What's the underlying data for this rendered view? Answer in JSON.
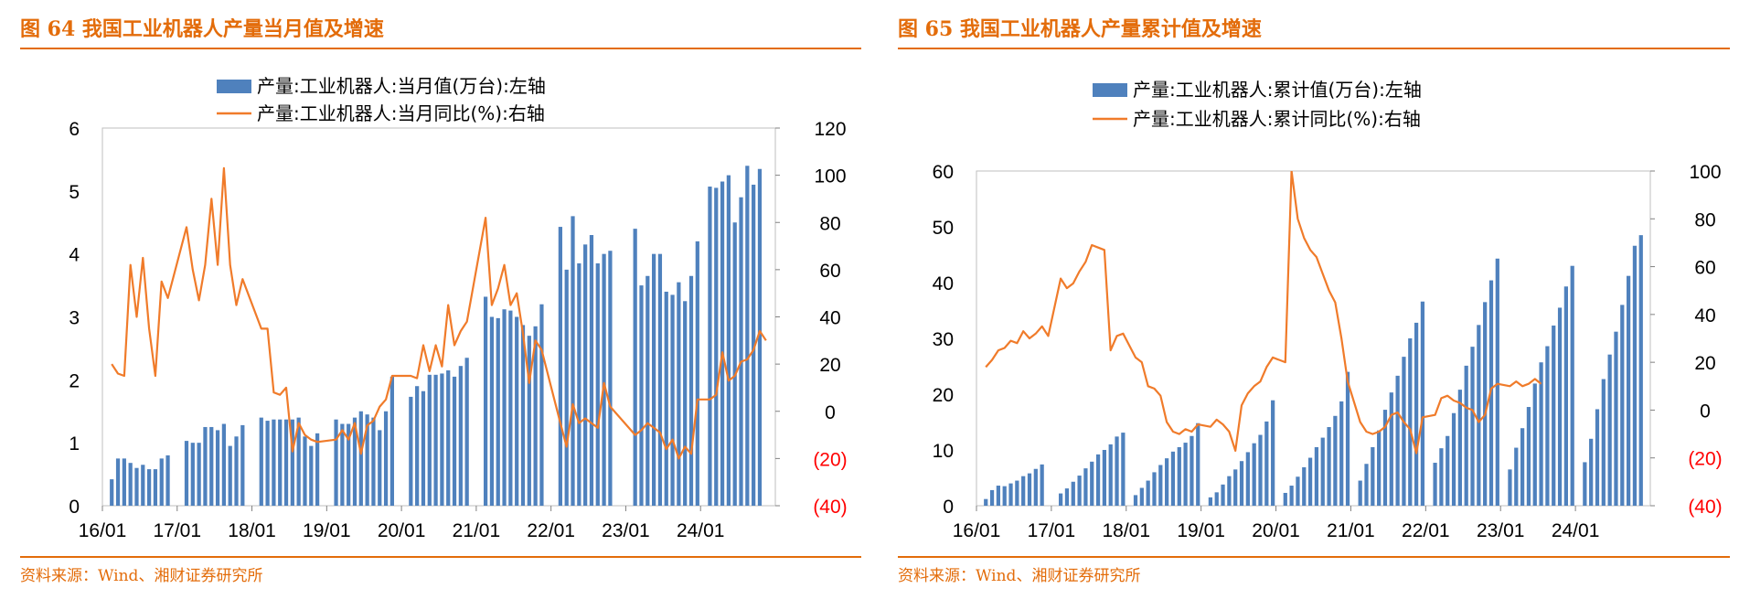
{
  "panels": [
    {
      "title": "图 64 我国工业机器人产量当月值及增速",
      "source": "资料来源：Wind、湘财证券研究所"
    },
    {
      "title": "图 65 我国工业机器人产量累计值及增速",
      "source": "资料来源：Wind、湘财证券研究所"
    }
  ],
  "colors": {
    "accent": "#E36C0A",
    "bar": "#4F81BD",
    "line": "#F07B2A",
    "negative_tick": "#FF0000"
  },
  "chart_data": [
    {
      "type": "bar",
      "title": "",
      "x_tick_labels": [
        "16/01",
        "17/01",
        "18/01",
        "19/01",
        "20/01",
        "21/01",
        "22/01",
        "23/01",
        "24/01"
      ],
      "y_left": {
        "range": [
          0,
          6
        ],
        "ticks": [
          "0",
          "1",
          "2",
          "3",
          "4",
          "5",
          "6"
        ]
      },
      "y_right": {
        "range": [
          -40,
          120
        ],
        "ticks": [
          "(40)",
          "(20)",
          "0",
          "20",
          "40",
          "60",
          "80",
          "100",
          "120"
        ]
      },
      "legend": [
        "产量:工业机器人:当月值(万台):左轴",
        "产量:工业机器人:当月同比(%):右轴"
      ],
      "series": [
        {
          "name": "产量:工业机器人:当月值(万台):左轴",
          "type": "bar",
          "axis": "left",
          "values": [
            null,
            0.42,
            0.75,
            0.75,
            0.68,
            0.6,
            0.65,
            0.58,
            0.58,
            0.75,
            0.8,
            null,
            null,
            1.03,
            1.0,
            1.0,
            1.25,
            1.25,
            1.2,
            1.3,
            0.95,
            1.1,
            1.28,
            null,
            null,
            1.4,
            1.35,
            1.37,
            1.37,
            1.37,
            1.37,
            1.4,
            1.1,
            0.95,
            1.15,
            null,
            null,
            1.37,
            1.3,
            1.3,
            1.4,
            1.5,
            1.45,
            1.4,
            1.2,
            1.5,
            2.05,
            null,
            null,
            1.73,
            1.9,
            1.82,
            2.08,
            2.08,
            2.1,
            2.15,
            2.05,
            2.22,
            2.35,
            null,
            null,
            3.32,
            3.0,
            2.98,
            3.12,
            3.1,
            3.0,
            2.87,
            2.7,
            2.85,
            3.2,
            null,
            null,
            4.43,
            3.75,
            4.6,
            3.85,
            4.15,
            4.3,
            3.85,
            4.0,
            4.05,
            null,
            null,
            null,
            4.4,
            3.5,
            3.65,
            4.0,
            4.0,
            3.4,
            3.35,
            3.55,
            3.25,
            3.65,
            4.2,
            null,
            5.07,
            5.05,
            5.15,
            5.25,
            4.5,
            4.9,
            5.4,
            5.1,
            5.35,
            null,
            null
          ]
        },
        {
          "name": "产量:工业机器人:当月同比(%):右轴",
          "type": "line",
          "axis": "right",
          "values": [
            null,
            20,
            16,
            15,
            62,
            40,
            65,
            35,
            15,
            55,
            48,
            null,
            null,
            78,
            60,
            47,
            62,
            90,
            62,
            103,
            62,
            45,
            56,
            null,
            null,
            35,
            35,
            8,
            7,
            10,
            -17,
            -5,
            -10,
            -12,
            -13,
            null,
            null,
            -12,
            -8,
            -12,
            -5,
            -18,
            -6,
            -4,
            2,
            5,
            15,
            null,
            null,
            15,
            14,
            28,
            17,
            28,
            19,
            45,
            28,
            34,
            38,
            null,
            null,
            82,
            45,
            52,
            62,
            45,
            50,
            33,
            12,
            30,
            26,
            null,
            null,
            -5,
            -15,
            3,
            -5,
            -3,
            -5,
            -7,
            12,
            2,
            null,
            null,
            null,
            -10,
            -8,
            -5,
            -7,
            -9,
            -16,
            -12,
            -20,
            -15,
            -18,
            5,
            null,
            5,
            7,
            25,
            13,
            15,
            21,
            22,
            26,
            34,
            30,
            null
          ]
        }
      ]
    },
    {
      "type": "bar",
      "title": "",
      "x_tick_labels": [
        "16/01",
        "17/01",
        "18/01",
        "19/01",
        "20/01",
        "21/01",
        "22/01",
        "23/01",
        "24/01"
      ],
      "y_left": {
        "range": [
          0,
          60
        ],
        "ticks": [
          "0",
          "10",
          "20",
          "30",
          "40",
          "50",
          "60"
        ]
      },
      "y_right": {
        "range": [
          -40,
          100
        ],
        "ticks": [
          "(40)",
          "(20)",
          "0",
          "20",
          "40",
          "60",
          "80",
          "100"
        ]
      },
      "legend": [
        "产量:工业机器人:累计值(万台):左轴",
        "产量:工业机器人:累计同比(%):右轴"
      ],
      "series": [
        {
          "name": "产量:工业机器人:累计值(万台):左轴",
          "type": "bar",
          "axis": "left",
          "values": [
            null,
            1.2,
            2.8,
            3.6,
            3.5,
            4.0,
            4.5,
            5.3,
            5.8,
            6.6,
            7.4,
            null,
            null,
            2.2,
            3.1,
            4.3,
            5.4,
            6.7,
            7.9,
            9.2,
            10.0,
            11.0,
            12.4,
            13.1,
            null,
            1.9,
            3.2,
            4.5,
            6.0,
            7.3,
            8.5,
            9.7,
            10.5,
            11.3,
            12.5,
            14.8,
            null,
            1.5,
            2.4,
            3.8,
            5.3,
            6.5,
            8.0,
            9.6,
            11.2,
            12.7,
            15.1,
            18.9,
            null,
            2.3,
            3.6,
            5.2,
            6.9,
            8.6,
            10.5,
            12.2,
            14.1,
            16.1,
            18.7,
            24.0,
            null,
            4.5,
            7.5,
            10.5,
            13.5,
            17.2,
            20.3,
            23.3,
            26.7,
            30.0,
            32.8,
            36.6,
            null,
            7.7,
            10.3,
            12.5,
            16.6,
            20.8,
            25.1,
            28.5,
            32.4,
            36.5,
            40.4,
            44.3,
            null,
            6.5,
            10.4,
            13.9,
            17.7,
            21.9,
            25.7,
            28.6,
            32.3,
            35.5,
            39.3,
            43.0,
            null,
            7.8,
            12.0,
            17.3,
            22.7,
            27.1,
            31.2,
            36.0,
            41.2,
            46.6,
            48.5,
            null
          ]
        },
        {
          "name": "产量:工业机器人:累计同比(%):右轴",
          "type": "line",
          "axis": "right",
          "values": [
            null,
            18,
            21,
            25,
            26,
            29,
            28,
            33,
            30,
            32,
            35,
            31,
            null,
            55,
            51,
            53,
            58,
            62,
            69,
            68,
            67,
            25,
            31,
            32,
            null,
            22,
            20,
            10,
            9,
            6,
            -5,
            -9,
            -10,
            -8,
            -9,
            -6,
            null,
            -7,
            -4,
            -6,
            -9,
            -17,
            2,
            7,
            10,
            12,
            18,
            22,
            null,
            20,
            100,
            80,
            72,
            67,
            64,
            57,
            50,
            45,
            30,
            12,
            null,
            -5,
            -9,
            -10,
            -9,
            -7,
            -2,
            -1,
            -5,
            -8,
            -18,
            -3,
            null,
            -2,
            5,
            6,
            4,
            3,
            1,
            0,
            -5,
            -2,
            9,
            11,
            null,
            10,
            12,
            10,
            11,
            13,
            11,
            null,
            null,
            null,
            null,
            null,
            null,
            null,
            null,
            null,
            null,
            null,
            null,
            null,
            null,
            null,
            null,
            null
          ]
        }
      ]
    }
  ]
}
